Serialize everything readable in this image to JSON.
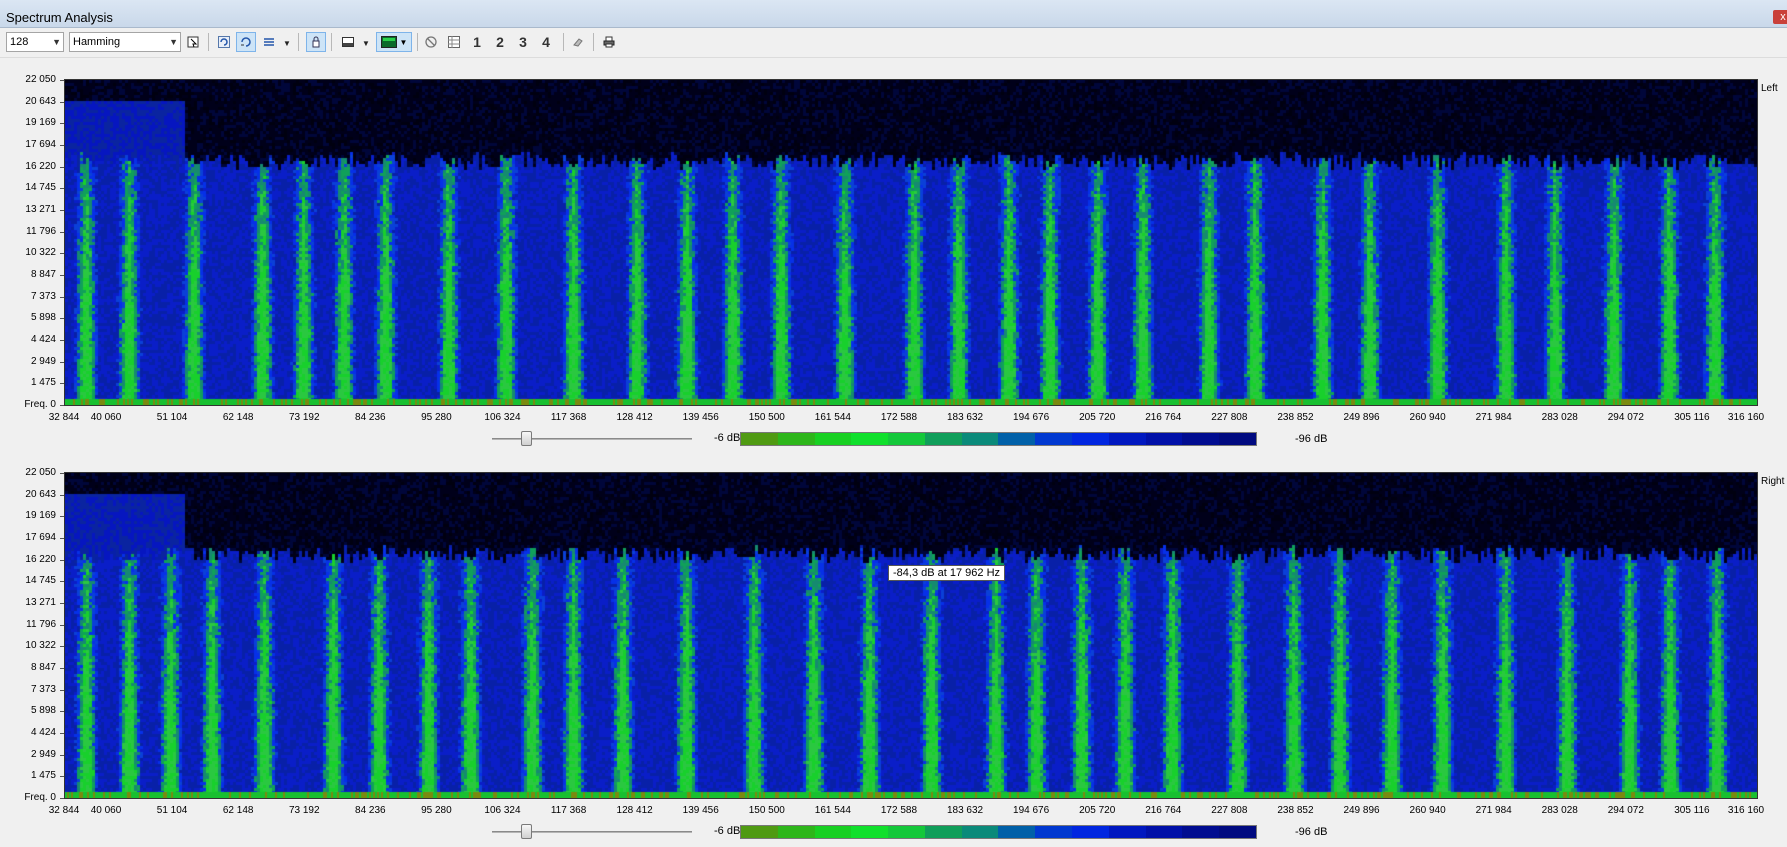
{
  "window": {
    "title": "Spectrum Analysis",
    "close_glyph": "x"
  },
  "toolbar": {
    "fft_size": "128",
    "window_function": "Hamming",
    "channel_buttons": [
      "1",
      "2",
      "3",
      "4"
    ],
    "icons": [
      "select-icon",
      "refresh-icon",
      "auto-refresh-icon",
      "options-icon",
      "lock-icon",
      "view-mode-icon",
      "color-scheme-icon",
      "stop-icon",
      "grid-icon",
      "eraser-icon",
      "print-icon"
    ]
  },
  "freq_axis": {
    "labels": [
      "22 050",
      "20 643",
      "19 169",
      "17 694",
      "16 220",
      "14 745",
      "13 271",
      "11 796",
      "10 322",
      "8 847",
      "7 373",
      "5 898",
      "4 424",
      "2 949",
      "1 475",
      "Freq. 0"
    ]
  },
  "time_axis": {
    "labels": [
      "32 844",
      "40 060",
      "51 104",
      "62 148",
      "73 192",
      "84 236",
      "95 280",
      "106 324",
      "117 368",
      "128 412",
      "139 456",
      "150 500",
      "161 544",
      "172 588",
      "183 632",
      "194 676",
      "205 720",
      "216 764",
      "227 808",
      "238 852",
      "249 896",
      "260 940",
      "271 984",
      "283 028",
      "294 072",
      "305 116",
      "316 160"
    ]
  },
  "colors": {
    "scale": [
      "#4f9a12",
      "#2db61a",
      "#18d022",
      "#10e02c",
      "#14c83a",
      "#109e5a",
      "#0a8a7a",
      "#0060a8",
      "#0038d0",
      "#0026e0",
      "#0018c0",
      "#0010a8",
      "#000c90",
      "#000a80"
    ]
  },
  "channels": [
    {
      "name": "Left",
      "db_max": "-6 dB",
      "db_min": "-96 dB",
      "slider_level": 0.17
    },
    {
      "name": "Right",
      "db_max": "-6 dB",
      "db_min": "-96 dB",
      "slider_level": 0.17
    }
  ],
  "tooltip": "-84,3 dB at 17 962 Hz"
}
